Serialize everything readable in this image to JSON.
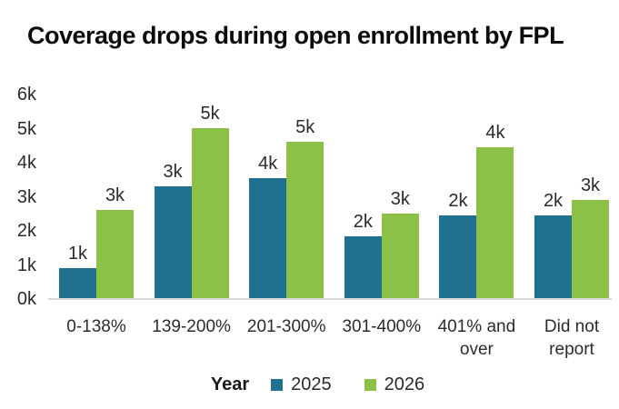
{
  "title": "Coverage drops during open enrollment by FPL",
  "legend": {
    "title": "Year",
    "items": [
      {
        "label": "2025",
        "color": "#20718F"
      },
      {
        "label": "2026",
        "color": "#8CC148"
      }
    ]
  },
  "chart_data": {
    "type": "bar",
    "title": "Coverage drops during open enrollment by FPL",
    "categories": [
      "0-138%",
      "139-200%",
      "201-300%",
      "301-400%",
      "401% and over",
      "Did not report"
    ],
    "series": [
      {
        "name": "2025",
        "color": "#20718F",
        "values": [
          0.9,
          3.3,
          3.55,
          1.85,
          2.45,
          2.45
        ],
        "labels": [
          "1k",
          "3k",
          "4k",
          "2k",
          "2k",
          "2k"
        ]
      },
      {
        "name": "2026",
        "color": "#8CC148",
        "values": [
          2.6,
          5.0,
          4.6,
          2.5,
          4.45,
          2.9
        ],
        "labels": [
          "3k",
          "5k",
          "5k",
          "3k",
          "4k",
          "3k"
        ]
      }
    ],
    "xlabel": "",
    "ylabel": "",
    "ylim": [
      0,
      6
    ],
    "yticks": [
      "0k",
      "1k",
      "2k",
      "3k",
      "4k",
      "5k",
      "6k"
    ],
    "grid": false,
    "legend_position": "bottom",
    "legend_title": "Year",
    "background": "#ffffff",
    "text_color": "#2b2b2b"
  }
}
